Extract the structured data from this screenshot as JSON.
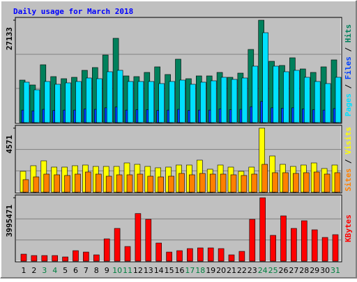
{
  "title": "Daily usage for March 2018",
  "legend_separator": " / ",
  "chart_data": [
    {
      "type": "bar",
      "ylim": [
        0,
        27133
      ],
      "yticks": [
        27133
      ],
      "series": [
        {
          "name": "Hits",
          "color": "#00805c",
          "values": [
            11260,
            9968,
            15322,
            12184,
            11630,
            12000,
            13845,
            14583,
            17906,
            22337,
            12368,
            12184,
            13291,
            14768,
            12737,
            16799,
            11630,
            12368,
            12368,
            13291,
            12000,
            13107,
            19383,
            27133,
            16245,
            15137,
            17168,
            14214,
            13291,
            14768,
            16614
          ]
        },
        {
          "name": "Files",
          "color": "#0040ff",
          "values": [
            3300,
            3100,
            3500,
            3200,
            3300,
            3300,
            3600,
            3500,
            3900,
            4100,
            3300,
            3400,
            3400,
            3200,
            3300,
            3500,
            3200,
            3300,
            3300,
            3600,
            3400,
            3500,
            4200,
            5600,
            3900,
            3800,
            3900,
            3600,
            3400,
            3300,
            3700
          ]
        },
        {
          "name": "Pages",
          "color": "#00e0ff",
          "values": [
            10707,
            8676,
            10891,
            10153,
            10522,
            10891,
            11814,
            11630,
            13476,
            13845,
            10891,
            10891,
            10891,
            10338,
            10891,
            11260,
            10153,
            10707,
            11076,
            12000,
            11445,
            11814,
            14953,
            23813,
            14953,
            13476,
            13845,
            12000,
            10891,
            10338,
            12000
          ]
        }
      ]
    },
    {
      "type": "bar",
      "ylim": [
        0,
        4571
      ],
      "yticks": [
        4571
      ],
      "series": [
        {
          "name": "Visits",
          "color": "#ffff00",
          "values": [
            1491,
            1889,
            2237,
            1789,
            1789,
            1889,
            1938,
            1839,
            1839,
            1839,
            2087,
            1988,
            1839,
            1740,
            1789,
            1938,
            1938,
            2286,
            1640,
            1938,
            1789,
            1491,
            1789,
            4571,
            2584,
            1988,
            1839,
            1938,
            2087,
            1690,
            1938
          ]
        },
        {
          "name": "Sites",
          "color": "#ff8000",
          "values": [
            895,
            1093,
            1292,
            1242,
            1193,
            1292,
            1441,
            1292,
            1143,
            1242,
            1242,
            1292,
            1143,
            1093,
            1143,
            1342,
            1242,
            1342,
            1292,
            1292,
            1242,
            1193,
            1292,
            1988,
            1392,
            1392,
            1342,
            1392,
            1441,
            1292,
            1392
          ]
        }
      ]
    },
    {
      "type": "bar",
      "ylim": [
        0,
        3995471
      ],
      "yticks": [
        3995471
      ],
      "categories": [
        "1",
        "2",
        "3",
        "4",
        "5",
        "6",
        "7",
        "8",
        "9",
        "10",
        "11",
        "12",
        "13",
        "14",
        "15",
        "16",
        "17",
        "18",
        "19",
        "20",
        "21",
        "22",
        "23",
        "24",
        "25",
        "26",
        "27",
        "28",
        "29",
        "30",
        "31"
      ],
      "category_colors": [
        "#000000",
        "#000000",
        "#008040",
        "#008040",
        "#000000",
        "#000000",
        "#000000",
        "#000000",
        "#000000",
        "#008040",
        "#008040",
        "#000000",
        "#000000",
        "#000000",
        "#000000",
        "#000000",
        "#008040",
        "#008040",
        "#000000",
        "#000000",
        "#000000",
        "#000000",
        "#000000",
        "#008040",
        "#008040",
        "#000000",
        "#000000",
        "#000000",
        "#000000",
        "#000000",
        "#008040"
      ],
      "series": [
        {
          "name": "KBytes",
          "color": "#ff0000",
          "values": [
            439070,
            351256,
            351256,
            351256,
            263442,
            658605,
            570791,
            395163,
            1404838,
            2063443,
            922047,
            3000000,
            2634954,
            1141582,
            570791,
            658605,
            790326,
            834233,
            834233,
            790326,
            395163,
            614698,
            2634954,
            3995471,
            1624559,
            2854023,
            2063443,
            2546163,
            1975629,
            1492652,
            1668466
          ]
        }
      ]
    }
  ]
}
